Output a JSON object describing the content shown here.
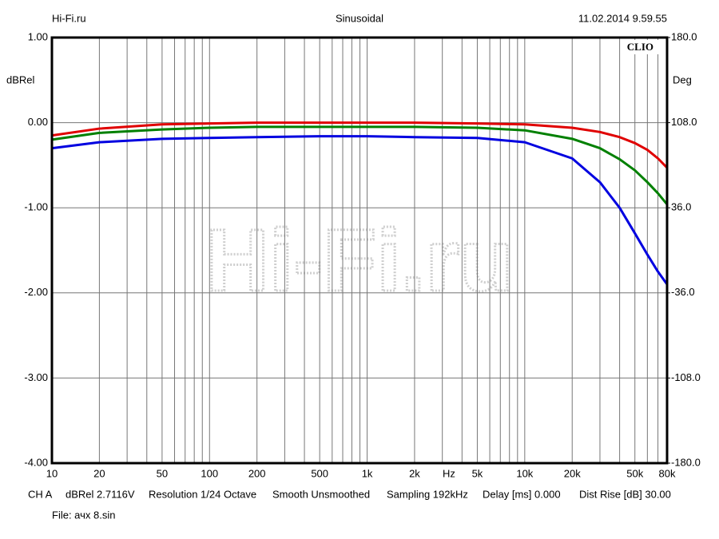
{
  "chart_data": {
    "type": "line",
    "header_left": "Hi-Fi.ru",
    "title": "Sinusoidal",
    "header_right": "11.02.2014 9.59.55",
    "brand": "CLIO",
    "watermark": "Hi-Fi.ru",
    "ylabel": "dBRel",
    "y2label": "Deg",
    "xlabel": "Hz",
    "log_x": true,
    "grid": true,
    "xlim": [
      10,
      80000
    ],
    "xticks": [
      10,
      20,
      50,
      100,
      200,
      500,
      {
        "value": 1000,
        "label": "1k"
      },
      {
        "value": 2000,
        "label": "2k"
      },
      {
        "value": 5000,
        "label": "5k"
      },
      {
        "value": 10000,
        "label": "10k"
      },
      {
        "value": 20000,
        "label": "20k"
      },
      {
        "value": 50000,
        "label": "50k"
      },
      {
        "value": 80000,
        "label": "80k"
      }
    ],
    "xminor_ticks": [
      30,
      40,
      60,
      70,
      80,
      90,
      300,
      400,
      600,
      700,
      800,
      900,
      3000,
      4000,
      6000,
      7000,
      8000,
      9000,
      30000,
      40000,
      60000,
      70000
    ],
    "ylim": [
      -4,
      1
    ],
    "yticks": [
      {
        "value": 1,
        "label": "1.00"
      },
      {
        "value": 0,
        "label": "0.00"
      },
      {
        "value": -1,
        "label": "-1.00"
      },
      {
        "value": -2,
        "label": "-2.00"
      },
      {
        "value": -3,
        "label": "-3.00"
      },
      {
        "value": -4,
        "label": "-4.00"
      }
    ],
    "y2lim": [
      -180,
      180
    ],
    "y2ticks": [
      {
        "value": 180,
        "label": "180.0"
      },
      {
        "value": 108,
        "label": "108.0"
      },
      {
        "value": 36,
        "label": "36.0"
      },
      {
        "value": -36,
        "label": "-36.0"
      },
      {
        "value": -108,
        "label": "-108.0"
      },
      {
        "value": -180,
        "label": "-180.0"
      }
    ],
    "x": [
      10,
      20,
      50,
      100,
      200,
      500,
      1000,
      2000,
      5000,
      10000,
      20000,
      30000,
      40000,
      50000,
      60000,
      70000,
      80000
    ],
    "series": [
      {
        "color": "#e00000",
        "values": [
          -0.15,
          -0.07,
          -0.02,
          -0.01,
          0.0,
          0.0,
          0.0,
          0.0,
          -0.01,
          -0.02,
          -0.06,
          -0.11,
          -0.17,
          -0.24,
          -0.32,
          -0.42,
          -0.53
        ]
      },
      {
        "color": "#008000",
        "values": [
          -0.2,
          -0.12,
          -0.08,
          -0.06,
          -0.05,
          -0.05,
          -0.05,
          -0.05,
          -0.06,
          -0.09,
          -0.19,
          -0.3,
          -0.43,
          -0.56,
          -0.7,
          -0.83,
          -0.96
        ]
      },
      {
        "color": "#0000e0",
        "values": [
          -0.3,
          -0.23,
          -0.19,
          -0.18,
          -0.17,
          -0.16,
          -0.16,
          -0.17,
          -0.18,
          -0.23,
          -0.42,
          -0.7,
          -1.0,
          -1.3,
          -1.55,
          -1.75,
          -1.9
        ]
      }
    ],
    "footer": [
      "CH A",
      "dBRel 2.7116V",
      "Resolution 1/24 Octave",
      "Smooth Unsmoothed",
      "Sampling 192kHz",
      "Delay [ms] 0.000",
      "Dist Rise [dB] 30.00"
    ],
    "file": "File: ачх 8.sin"
  }
}
